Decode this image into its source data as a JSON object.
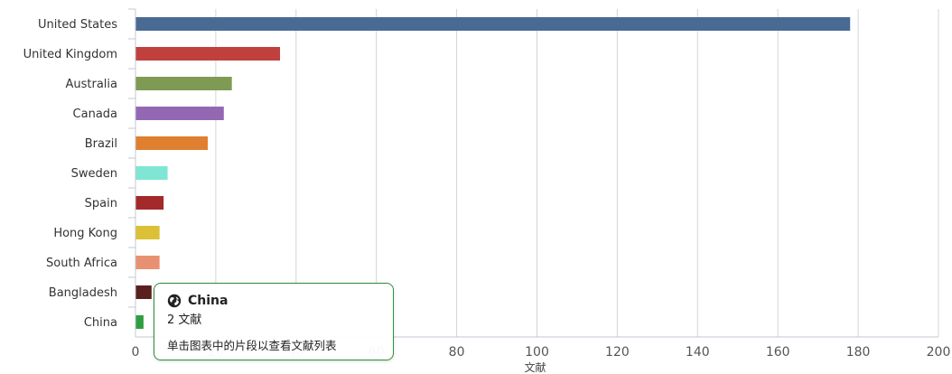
{
  "chart_data": {
    "type": "bar",
    "orientation": "horizontal",
    "categories": [
      "United States",
      "United Kingdom",
      "Australia",
      "Canada",
      "Brazil",
      "Sweden",
      "Spain",
      "Hong Kong",
      "South Africa",
      "Bangladesh",
      "China"
    ],
    "values": [
      178,
      36,
      24,
      22,
      18,
      8,
      7,
      6,
      6,
      4,
      2
    ],
    "colors": [
      "#4a6a94",
      "#c0403e",
      "#7f9a52",
      "#9467b3",
      "#e07f2f",
      "#7fe6d4",
      "#a3292a",
      "#dbc135",
      "#e89172",
      "#5a1f1f",
      "#2f9e42"
    ],
    "xlabel": "文献",
    "xlim": [
      0,
      200
    ],
    "xticks": [
      0,
      20,
      40,
      60,
      80,
      100,
      120,
      140,
      160,
      180,
      200
    ],
    "grid": true,
    "legend": "none"
  },
  "tooltip": {
    "title": "China",
    "value_line": "2 文献",
    "hint": "单击图表中的片段以查看文献列表",
    "icon": "globe-icon"
  }
}
